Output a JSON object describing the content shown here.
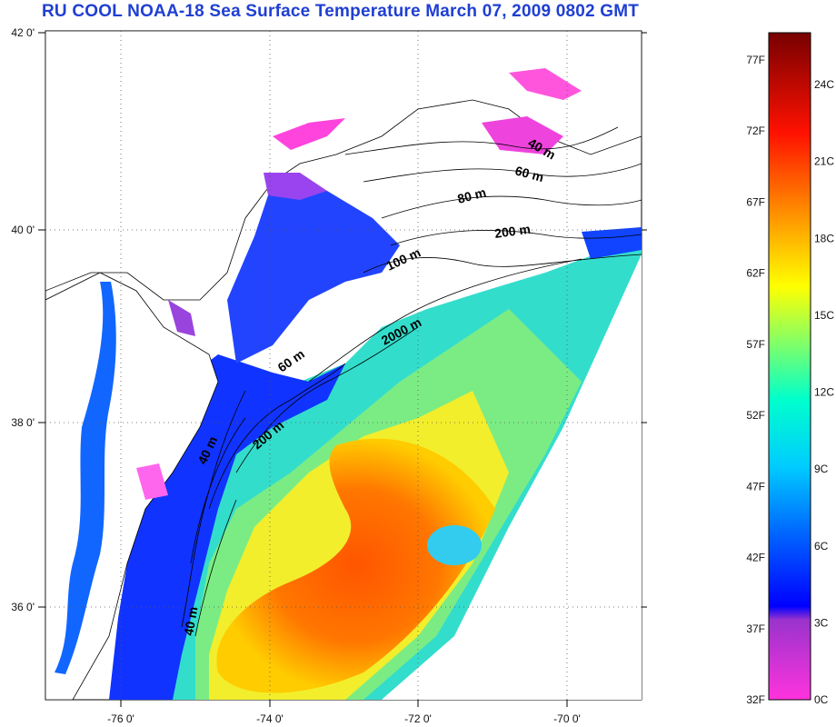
{
  "title": "RU COOL  NOAA-18 Sea Surface Temperature March 07, 2009 0802 GMT",
  "map": {
    "lon_ticks": [
      "-76 0'",
      "-74 0'",
      "-72 0'",
      "-70 0'"
    ],
    "lat_ticks": [
      "42 0'",
      "40 0'",
      "38 0'",
      "36 0'"
    ],
    "lon_range": [
      -77,
      -69
    ],
    "lat_range": [
      35,
      42
    ],
    "isobath_labels": [
      {
        "text": "40 m"
      },
      {
        "text": "60 m"
      },
      {
        "text": "80 m"
      },
      {
        "text": "200 m"
      },
      {
        "text": "100 m"
      },
      {
        "text": "2000 m"
      },
      {
        "text": "60 m"
      },
      {
        "text": "200 m"
      },
      {
        "text": "40 m"
      },
      {
        "text": "40 m"
      }
    ]
  },
  "colorbar": {
    "fahrenheit": [
      "77F",
      "72F",
      "67F",
      "62F",
      "57F",
      "52F",
      "47F",
      "42F",
      "37F",
      "32F"
    ],
    "celsius": [
      "24C",
      "21C",
      "18C",
      "15C",
      "12C",
      "9C",
      "6C",
      "3C",
      "0C"
    ],
    "colors": [
      "#ff33cc",
      "#8a2be2",
      "#0000ff",
      "#0077ff",
      "#00dddd",
      "#55ee88",
      "#ffff00",
      "#ff9900",
      "#ff2200",
      "#cc0000",
      "#7a0000"
    ]
  }
}
